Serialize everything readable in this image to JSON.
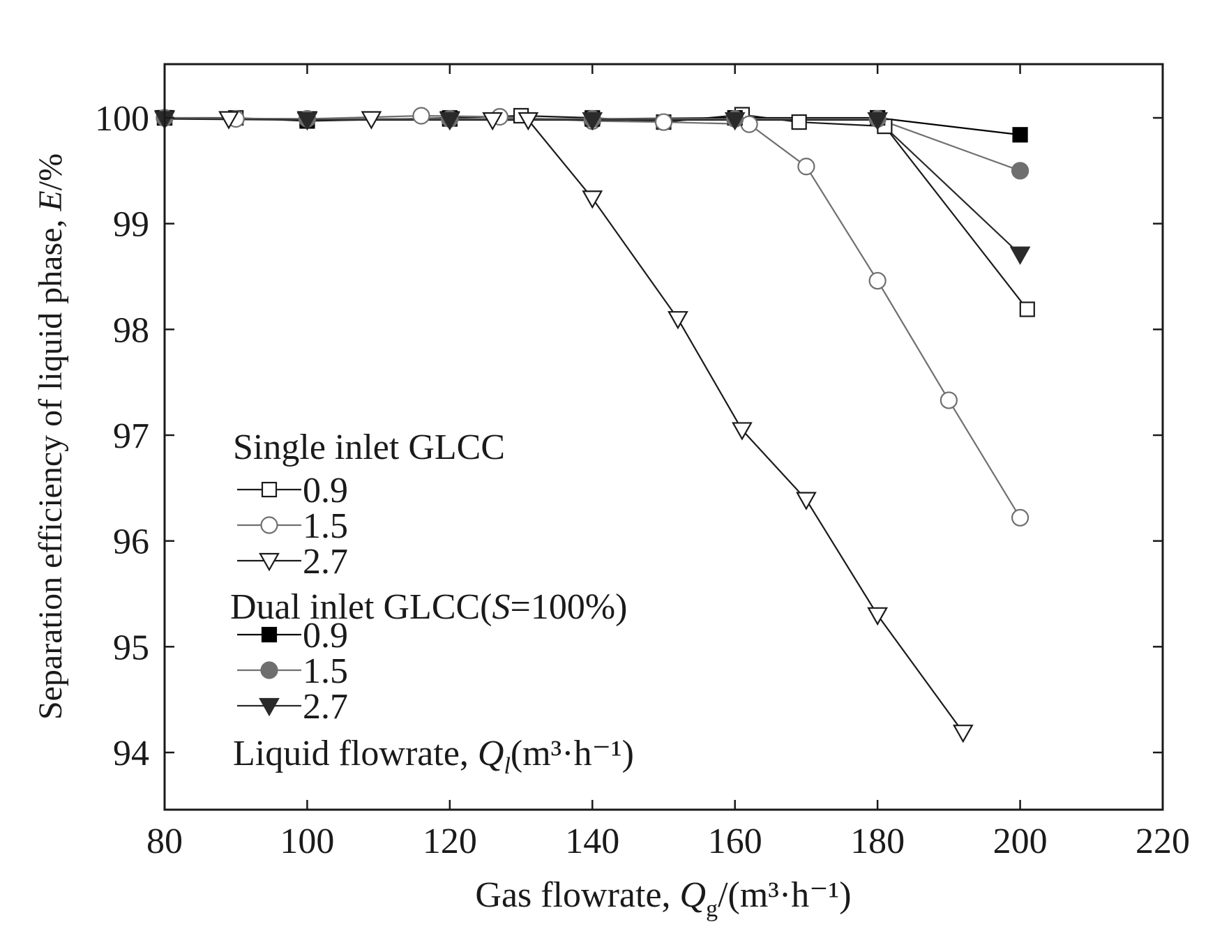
{
  "chart_data": {
    "type": "line",
    "title": "",
    "xlabel": {
      "prefix": "Gas flowrate, ",
      "var": "Q",
      "sub": "g",
      "unit": "/(m³·h⁻¹)"
    },
    "ylabel": {
      "prefix": "Separation efficiency of liquid phase, ",
      "var": "E",
      "unit": "/%"
    },
    "xlim": [
      80,
      220
    ],
    "ylim": [
      93.5,
      100.5
    ],
    "xticks": [
      80,
      100,
      120,
      140,
      160,
      180,
      200,
      220
    ],
    "yticks": [
      94,
      95,
      96,
      97,
      98,
      99,
      100
    ],
    "grid": false,
    "legend_position": "lower-left",
    "legend": {
      "group1_title": "Single inlet GLCC",
      "group2_title": {
        "prefix": "Dual inlet GLCC(",
        "var": "S",
        "suffix": "=100%)"
      },
      "footer": {
        "prefix": "Liquid flowrate, ",
        "var": "Q",
        "sub": "l",
        "unit": "(m³·h⁻¹)"
      }
    },
    "series": [
      {
        "name": "0.9",
        "group": "single",
        "marker": "square",
        "filled": false,
        "color": "#1a1a1a",
        "points": [
          [
            80,
            100.0
          ],
          [
            90,
            100.0
          ],
          [
            100,
            99.97
          ],
          [
            120,
            100.0
          ],
          [
            130,
            100.02
          ],
          [
            140,
            100.0
          ],
          [
            150,
            99.96
          ],
          [
            161,
            100.03
          ],
          [
            169,
            99.96
          ],
          [
            181,
            99.92
          ],
          [
            201,
            98.19
          ]
        ]
      },
      {
        "name": "1.5",
        "group": "single",
        "marker": "circle",
        "filled": false,
        "color": "#6f6f6f",
        "points": [
          [
            80,
            100.0
          ],
          [
            90,
            99.99
          ],
          [
            100,
            99.99
          ],
          [
            116,
            100.02
          ],
          [
            127,
            100.01
          ],
          [
            140,
            99.97
          ],
          [
            150,
            99.96
          ],
          [
            162,
            99.94
          ],
          [
            170,
            99.54
          ],
          [
            180,
            98.46
          ],
          [
            190,
            97.33
          ],
          [
            200,
            96.22
          ]
        ]
      },
      {
        "name": "2.7",
        "group": "single",
        "marker": "triangle-down",
        "filled": false,
        "color": "#1a1a1a",
        "points": [
          [
            80,
            100.0
          ],
          [
            89,
            99.99
          ],
          [
            100,
            99.99
          ],
          [
            109,
            99.99
          ],
          [
            120,
            99.99
          ],
          [
            126,
            99.98
          ],
          [
            131,
            99.98
          ],
          [
            140,
            99.24
          ],
          [
            152,
            98.1
          ],
          [
            161,
            97.05
          ],
          [
            170,
            96.39
          ],
          [
            180,
            95.3
          ],
          [
            192,
            94.19
          ]
        ]
      },
      {
        "name": "0.9",
        "group": "dual",
        "marker": "square",
        "filled": true,
        "color": "#000000",
        "points": [
          [
            80,
            100.0
          ],
          [
            100,
            99.98
          ],
          [
            120,
            99.99
          ],
          [
            140,
            99.99
          ],
          [
            160,
            100.0
          ],
          [
            180,
            100.0
          ],
          [
            200,
            99.84
          ]
        ]
      },
      {
        "name": "1.5",
        "group": "dual",
        "marker": "circle",
        "filled": true,
        "color": "#6f6f6f",
        "points": [
          [
            80,
            100.0
          ],
          [
            100,
            99.99
          ],
          [
            120,
            99.99
          ],
          [
            140,
            99.99
          ],
          [
            160,
            99.99
          ],
          [
            180,
            99.99
          ],
          [
            200,
            99.5
          ]
        ]
      },
      {
        "name": "2.7",
        "group": "dual",
        "marker": "triangle-down",
        "filled": true,
        "color": "#2a2a2a",
        "points": [
          [
            80,
            99.99
          ],
          [
            100,
            99.98
          ],
          [
            120,
            99.98
          ],
          [
            140,
            99.98
          ],
          [
            160,
            99.98
          ],
          [
            180,
            99.98
          ],
          [
            200,
            98.71
          ]
        ]
      }
    ]
  }
}
